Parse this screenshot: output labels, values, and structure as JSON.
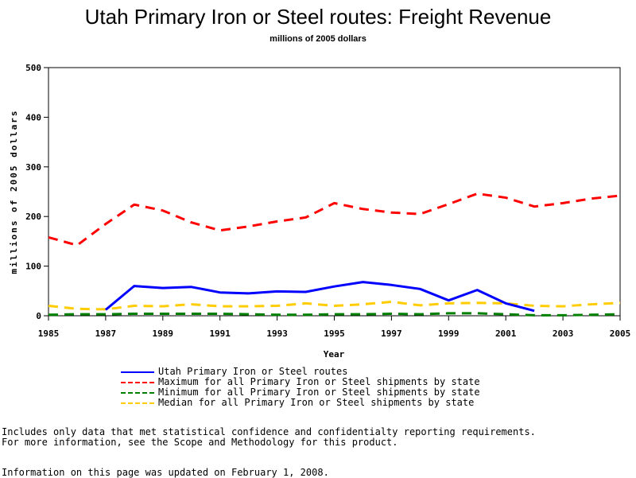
{
  "chart_data": {
    "type": "line",
    "title": "Utah Primary Iron or Steel routes: Freight Revenue",
    "subtitle": "millions of 2005 dollars",
    "xlabel": "Year",
    "ylabel": "millions of 2005 dollars",
    "xlim": [
      1985,
      2005
    ],
    "ylim": [
      0,
      500
    ],
    "xticks": [
      1985,
      1987,
      1989,
      1991,
      1993,
      1995,
      1997,
      1999,
      2001,
      2003,
      2005
    ],
    "yticks": [
      0,
      100,
      200,
      300,
      400,
      500
    ],
    "grid": false,
    "legend_position": "bottom",
    "series": [
      {
        "name": "Utah Primary Iron or Steel routes",
        "color": "#0000ff",
        "style": "solid",
        "x": [
          1987,
          1988,
          1989,
          1990,
          1991,
          1992,
          1993,
          1994,
          1995,
          1996,
          1997,
          1998,
          1999,
          2000,
          2001,
          2002
        ],
        "y": [
          12,
          60,
          56,
          58,
          47,
          45,
          49,
          48,
          59,
          68,
          62,
          54,
          31,
          52,
          25,
          10
        ]
      },
      {
        "name": "Maximum for all Primary Iron or Steel shipments by state",
        "color": "#ff0000",
        "style": "dashed",
        "x": [
          1985,
          1986,
          1987,
          1988,
          1989,
          1990,
          1991,
          1992,
          1993,
          1994,
          1995,
          1996,
          1997,
          1998,
          1999,
          2000,
          2001,
          2002,
          2003,
          2004,
          2005
        ],
        "y": [
          158,
          142,
          185,
          224,
          212,
          188,
          172,
          180,
          190,
          198,
          227,
          215,
          208,
          205,
          225,
          246,
          238,
          220,
          227,
          236,
          242
        ]
      },
      {
        "name": "Minimum for all Primary Iron or Steel shipments by state",
        "color": "#008000",
        "style": "dashed",
        "x": [
          1985,
          1986,
          1987,
          1988,
          1989,
          1990,
          1991,
          1992,
          1993,
          1994,
          1995,
          1996,
          1997,
          1998,
          1999,
          2000,
          2001,
          2002,
          2003,
          2004,
          2005
        ],
        "y": [
          2,
          3,
          3,
          4,
          4,
          4,
          4,
          3,
          2,
          2,
          3,
          3,
          4,
          3,
          5,
          5,
          3,
          1,
          1,
          2,
          3
        ]
      },
      {
        "name": "Median for all Primary Iron or Steel shipments by state",
        "color": "#ffcc00",
        "style": "dashed",
        "x": [
          1985,
          1986,
          1987,
          1988,
          1989,
          1990,
          1991,
          1992,
          1993,
          1994,
          1995,
          1996,
          1997,
          1998,
          1999,
          2000,
          2001,
          2002,
          2003,
          2004,
          2005
        ],
        "y": [
          20,
          14,
          13,
          20,
          19,
          23,
          19,
          19,
          20,
          25,
          20,
          23,
          28,
          21,
          25,
          26,
          25,
          20,
          19,
          23,
          26
        ]
      }
    ]
  },
  "notes": {
    "line1": "Includes only data that met statistical confidence and confidentialty reporting requirements.",
    "line2": "For more information, see the Scope and Methodology for this product.",
    "line3": "Information on this page was updated on February 1, 2008."
  }
}
